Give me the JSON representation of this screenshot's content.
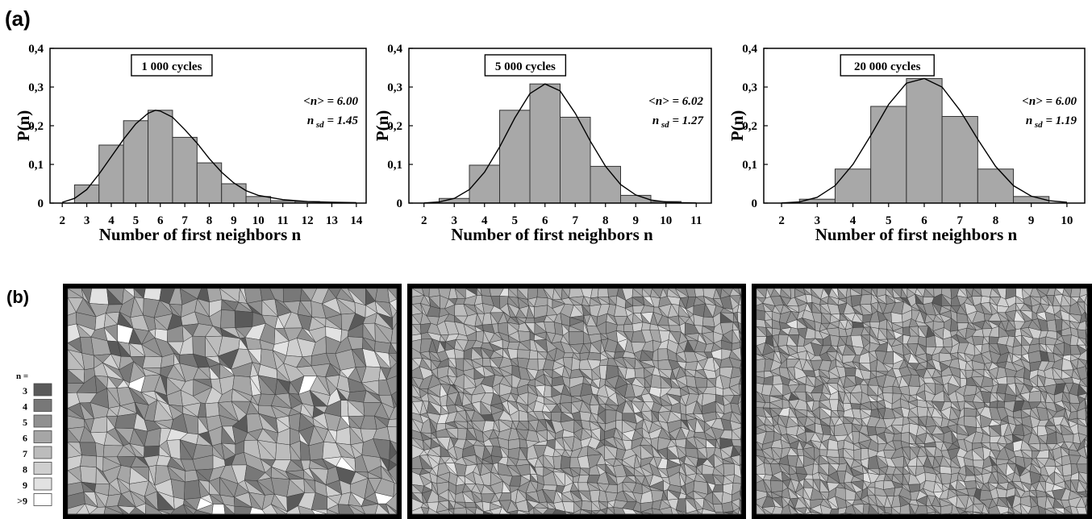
{
  "panel_labels": {
    "a": "(a)",
    "b": "(b)"
  },
  "chart_data": [
    {
      "type": "bar",
      "annotation_box": "1 000 cycles",
      "stats": {
        "mean_text": "<n> = 6.00",
        "sd_prefix": "n",
        "sd_sub": "sd",
        "sd_value": " = 1.45"
      },
      "xlabel": "Number of first neighbors n",
      "ylabel": "P(n)",
      "xlim": [
        1.5,
        14.4
      ],
      "ylim": [
        0,
        0.4
      ],
      "xticks": [
        2,
        3,
        4,
        5,
        6,
        7,
        8,
        9,
        10,
        11,
        12,
        13,
        14
      ],
      "yticks": [
        0,
        0.1,
        0.2,
        0.3,
        0.4
      ],
      "ytick_labels": [
        "0",
        "0,1",
        "0,2",
        "0,3",
        "0,4"
      ],
      "categories": [
        3,
        4,
        5,
        6,
        7,
        8,
        9,
        10,
        11,
        12,
        13
      ],
      "values": [
        0.047,
        0.15,
        0.213,
        0.24,
        0.17,
        0.104,
        0.05,
        0.017,
        0.006,
        0.004,
        0.002
      ],
      "fit_curve": {
        "type": "line",
        "x": [
          2,
          2.5,
          3,
          3.5,
          4,
          4.5,
          5,
          5.5,
          5.8,
          6,
          6.5,
          7,
          7.5,
          8,
          8.5,
          9,
          9.5,
          10,
          11,
          12,
          13,
          14
        ],
        "y": [
          0.002,
          0.012,
          0.035,
          0.075,
          0.12,
          0.165,
          0.205,
          0.232,
          0.24,
          0.238,
          0.222,
          0.19,
          0.155,
          0.115,
          0.08,
          0.052,
          0.032,
          0.02,
          0.009,
          0.004,
          0.002,
          0.001
        ]
      }
    },
    {
      "type": "bar",
      "annotation_box": "5 000 cycles",
      "stats": {
        "mean_text": "<n> = 6.02",
        "sd_prefix": "n",
        "sd_sub": "sd",
        "sd_value": " = 1.27"
      },
      "xlabel": "Number of first neighbors n",
      "ylabel": "P(n)",
      "xlim": [
        1.5,
        11.5
      ],
      "ylim": [
        0,
        0.4
      ],
      "xticks": [
        2,
        3,
        4,
        5,
        6,
        7,
        8,
        9,
        10,
        11
      ],
      "yticks": [
        0,
        0.1,
        0.2,
        0.3,
        0.4
      ],
      "ytick_labels": [
        "0",
        "0,1",
        "0,2",
        "0,3",
        "0,4"
      ],
      "categories": [
        3,
        4,
        5,
        6,
        7,
        8,
        9,
        10
      ],
      "values": [
        0.012,
        0.098,
        0.24,
        0.308,
        0.222,
        0.095,
        0.02,
        0.004
      ],
      "fit_curve": {
        "type": "line",
        "x": [
          2,
          2.5,
          3,
          3.5,
          4,
          4.5,
          5,
          5.5,
          6,
          6.5,
          7,
          7.5,
          8,
          8.5,
          9,
          9.5,
          10,
          10.5,
          11
        ],
        "y": [
          0.0005,
          0.003,
          0.012,
          0.035,
          0.08,
          0.145,
          0.22,
          0.283,
          0.308,
          0.29,
          0.232,
          0.16,
          0.095,
          0.048,
          0.021,
          0.008,
          0.003,
          0.001,
          0.0005
        ]
      }
    },
    {
      "type": "bar",
      "annotation_box": "20 000 cycles",
      "stats": {
        "mean_text": "<n> = 6.00",
        "sd_prefix": "n",
        "sd_sub": "sd",
        "sd_value": " = 1.19"
      },
      "xlabel": "Number of first neighbors n",
      "ylabel": "P(n)",
      "xlim": [
        1.5,
        10.5
      ],
      "ylim": [
        0,
        0.4
      ],
      "xticks": [
        2,
        3,
        4,
        5,
        6,
        7,
        8,
        9,
        10
      ],
      "yticks": [
        0,
        0.1,
        0.2,
        0.3,
        0.4
      ],
      "ytick_labels": [
        "0",
        "0,1",
        "0,2",
        "0,3",
        "0,4"
      ],
      "categories": [
        3,
        4,
        5,
        6,
        7,
        8,
        9
      ],
      "values": [
        0.01,
        0.088,
        0.25,
        0.322,
        0.224,
        0.088,
        0.017
      ],
      "fit_curve": {
        "type": "line",
        "x": [
          2,
          2.5,
          3,
          3.5,
          4,
          4.5,
          5,
          5.5,
          6,
          6.5,
          7,
          7.5,
          8,
          8.5,
          9,
          9.5,
          10
        ],
        "y": [
          0.0005,
          0.003,
          0.015,
          0.045,
          0.1,
          0.175,
          0.255,
          0.31,
          0.322,
          0.3,
          0.24,
          0.165,
          0.095,
          0.045,
          0.018,
          0.006,
          0.002
        ]
      }
    }
  ],
  "legend": {
    "title": "n =",
    "items": [
      {
        "label": "3",
        "color": "#5a5a5a"
      },
      {
        "label": "4",
        "color": "#787878"
      },
      {
        "label": "5",
        "color": "#909090"
      },
      {
        "label": "6",
        "color": "#a6a6a6"
      },
      {
        "label": "7",
        "color": "#bcbcbc"
      },
      {
        "label": "8",
        "color": "#cfcfcf"
      },
      {
        "label": "9",
        "color": "#e2e2e2"
      },
      {
        "label": ">9",
        "color": "#ffffff"
      }
    ]
  },
  "colors": {
    "bar_fill": "#a8a8a8",
    "bar_stroke": "#333333",
    "curve": "#000000",
    "mosaic_border": "#000000"
  }
}
